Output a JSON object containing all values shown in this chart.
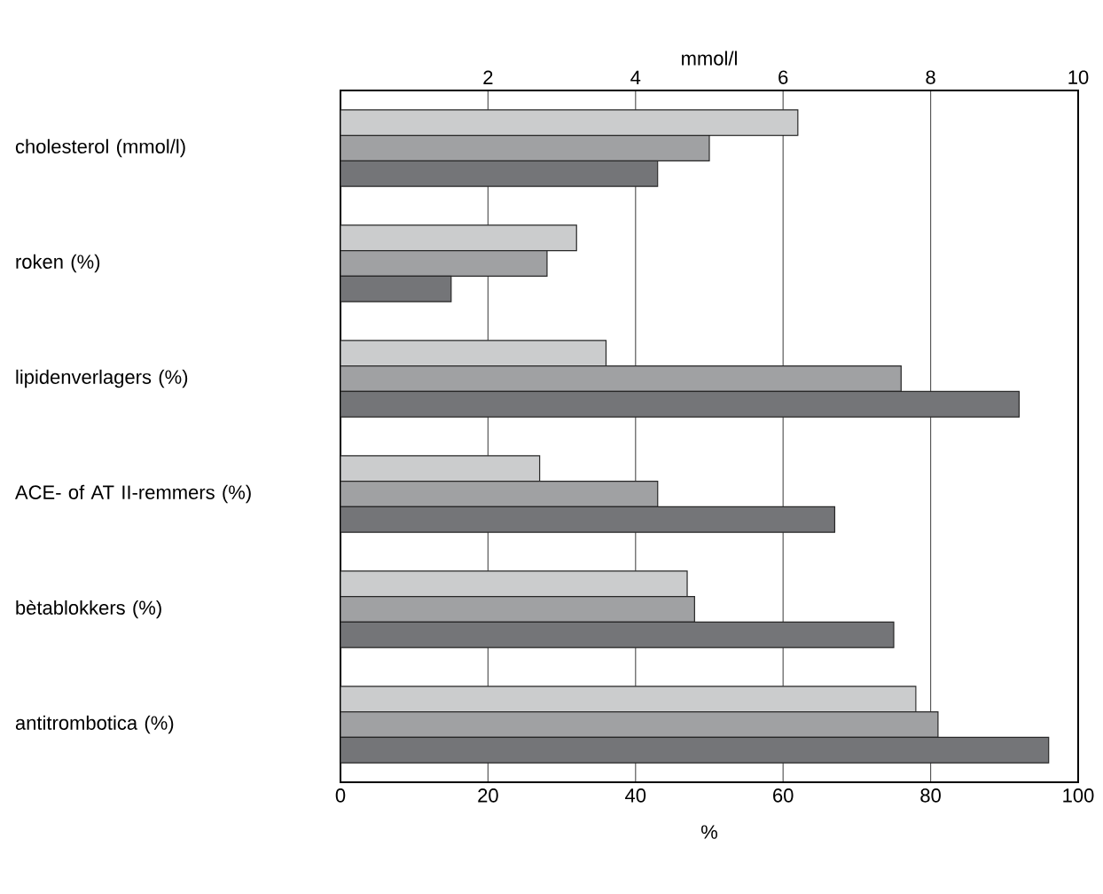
{
  "chart_data": {
    "type": "bar",
    "orientation": "horizontal",
    "xlabel": "%",
    "x2label": "mmol/l",
    "categories": [
      "cholesterol (mmol/l)",
      "roken (%)",
      "lipidenverlagers (%)",
      "ACE- of AT II-remmers (%)",
      "bètablokkers (%)",
      "antitrombotica (%)"
    ],
    "series": [
      {
        "color": "#cbcccd",
        "values": [
          null,
          32,
          36,
          27,
          47,
          78
        ]
      },
      {
        "color": "#a0a1a3",
        "values": [
          null,
          28,
          76,
          43,
          48,
          81
        ]
      },
      {
        "color": "#747578",
        "values": [
          null,
          15,
          92,
          67,
          75,
          96
        ]
      },
      {
        "color": "#cbcccd",
        "axis": "x2",
        "values": [
          6.2,
          null,
          null,
          null,
          null,
          null
        ]
      },
      {
        "color": "#a0a1a3",
        "axis": "x2",
        "values": [
          5.0,
          null,
          null,
          null,
          null,
          null
        ]
      },
      {
        "color": "#747578",
        "axis": "x2",
        "values": [
          4.3,
          null,
          null,
          null,
          null,
          null
        ]
      }
    ],
    "xlim": [
      0,
      100
    ],
    "xticks": [
      0,
      20,
      40,
      60,
      80,
      100
    ],
    "x2lim": [
      0,
      10
    ],
    "x2ticks": [
      2,
      4,
      6,
      8,
      10
    ],
    "grid": "x"
  }
}
